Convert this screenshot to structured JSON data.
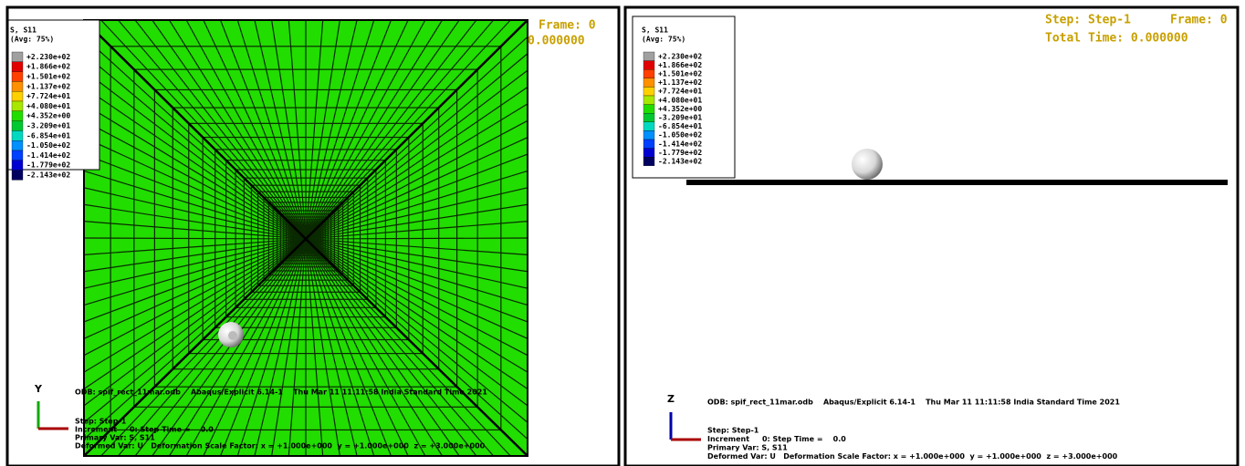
{
  "left_viewport": {
    "legend": {
      "title": "S, S11",
      "subtitle": "(Avg: 75%)",
      "labels": [
        "+2.230e+02",
        "+1.866e+02",
        "+1.501e+02",
        "+1.137e+02",
        "+7.724e+01",
        "+4.080e+01",
        "+4.352e+00",
        "-3.209e+01",
        "-6.854e+01",
        "-1.050e+02",
        "-1.414e+02",
        "-1.779e+02",
        "-2.143e+02"
      ]
    },
    "frame": "Frame: 0",
    "total_time": "0.000000",
    "axis_label": "Y",
    "info": [
      "ODB: spif_rect_11mar.odb    Abaqus/Explicit 6.14-1    Thu Mar 11 11:11:58 India Standard Time 2021",
      "Step: Step-1",
      "Increment     0: Step Time =    0.0",
      "Primary Var: S, S11",
      "Deformed Var: U   Deformation Scale Factor: x = +1.000e+000  y = +1.000e+000  z = +3.000e+000"
    ]
  },
  "right_viewport": {
    "legend": {
      "title": "S, S11",
      "subtitle": "(Avg: 75%)",
      "labels": [
        "+2.230e+02",
        "+1.866e+02",
        "+1.501e+02",
        "+1.137e+02",
        "+7.724e+01",
        "+4.080e+01",
        "+4.352e+00",
        "-3.209e+01",
        "-6.854e+01",
        "-1.050e+02",
        "-1.414e+02",
        "-1.779e+02",
        "-2.143e+02"
      ]
    },
    "step": "Step: Step-1",
    "frame": "Frame: 0",
    "total_time": "Total Time: 0.000000",
    "axis_label": "Z",
    "info": [
      "ODB: spif_rect_11mar.odb    Abaqus/Explicit 6.14-1    Thu Mar 11 11:11:58 India Standard Time 2021",
      "Step: Step-1",
      "Increment     0: Step Time =    0.0",
      "Primary Var: S, S11",
      "Deformed Var: U   Deformation Scale Factor: x = +1.000e+000  y = +1.000e+000  z = +3.000e+000"
    ]
  }
}
